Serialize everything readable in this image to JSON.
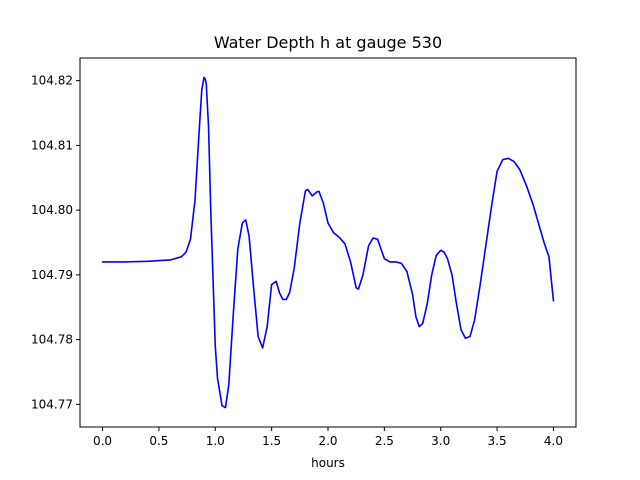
{
  "chart_data": {
    "type": "line",
    "title": "Water Depth h at gauge 530",
    "xlabel": "hours",
    "ylabel": "",
    "xlim": [
      -0.2,
      4.2
    ],
    "ylim": [
      104.7665,
      104.8235
    ],
    "xticks": [
      0.0,
      0.5,
      1.0,
      1.5,
      2.0,
      2.5,
      3.0,
      3.5,
      4.0
    ],
    "xtick_labels": [
      "0.0",
      "0.5",
      "1.0",
      "1.5",
      "2.0",
      "2.5",
      "3.0",
      "3.5",
      "4.0"
    ],
    "yticks": [
      104.77,
      104.78,
      104.79,
      104.8,
      104.81,
      104.82
    ],
    "ytick_labels": [
      "104.77",
      "104.78",
      "104.79",
      "104.80",
      "104.81",
      "104.82"
    ],
    "grid": false,
    "legend": false,
    "series": [
      {
        "color": "#0000ff",
        "x": [
          0.0,
          0.2,
          0.4,
          0.6,
          0.7,
          0.74,
          0.78,
          0.82,
          0.86,
          0.88,
          0.9,
          0.91,
          0.92,
          0.94,
          0.96,
          1.0,
          1.02,
          1.06,
          1.09,
          1.12,
          1.16,
          1.2,
          1.24,
          1.27,
          1.3,
          1.34,
          1.38,
          1.42,
          1.46,
          1.5,
          1.54,
          1.57,
          1.6,
          1.63,
          1.66,
          1.7,
          1.75,
          1.8,
          1.82,
          1.86,
          1.9,
          1.92,
          1.96,
          2.0,
          2.05,
          2.1,
          2.15,
          2.2,
          2.25,
          2.27,
          2.31,
          2.36,
          2.4,
          2.44,
          2.5,
          2.55,
          2.6,
          2.65,
          2.7,
          2.75,
          2.78,
          2.81,
          2.84,
          2.88,
          2.92,
          2.96,
          3.0,
          3.03,
          3.06,
          3.1,
          3.14,
          3.18,
          3.22,
          3.26,
          3.3,
          3.35,
          3.4,
          3.45,
          3.5,
          3.55,
          3.6,
          3.65,
          3.7,
          3.76,
          3.82,
          3.88,
          3.92,
          3.96,
          4.0
        ],
        "y": [
          104.792,
          104.792,
          104.7921,
          104.7923,
          104.7928,
          104.7935,
          104.7955,
          104.8015,
          104.813,
          104.8185,
          104.8205,
          104.8203,
          104.8195,
          104.813,
          104.8,
          104.779,
          104.774,
          104.7698,
          104.7695,
          104.773,
          104.784,
          104.794,
          104.798,
          104.7985,
          104.796,
          104.788,
          104.7805,
          104.7787,
          104.782,
          104.7885,
          104.789,
          104.7872,
          104.7862,
          104.7862,
          104.7873,
          104.791,
          104.798,
          104.803,
          104.8032,
          104.8022,
          104.8028,
          104.8029,
          104.801,
          104.798,
          104.7965,
          104.7958,
          104.7948,
          104.792,
          104.788,
          104.7878,
          104.79,
          104.7945,
          104.7957,
          104.7955,
          104.7925,
          104.792,
          104.792,
          104.7918,
          104.7905,
          104.787,
          104.7835,
          104.782,
          104.7825,
          104.7855,
          104.79,
          104.793,
          104.7938,
          104.7935,
          104.7925,
          104.79,
          104.7855,
          104.7815,
          104.7802,
          104.7805,
          104.783,
          104.7885,
          104.7945,
          104.8005,
          104.806,
          104.8078,
          104.808,
          104.8075,
          104.8063,
          104.8038,
          104.8008,
          104.7972,
          104.7948,
          104.7928,
          104.786
        ]
      }
    ]
  }
}
